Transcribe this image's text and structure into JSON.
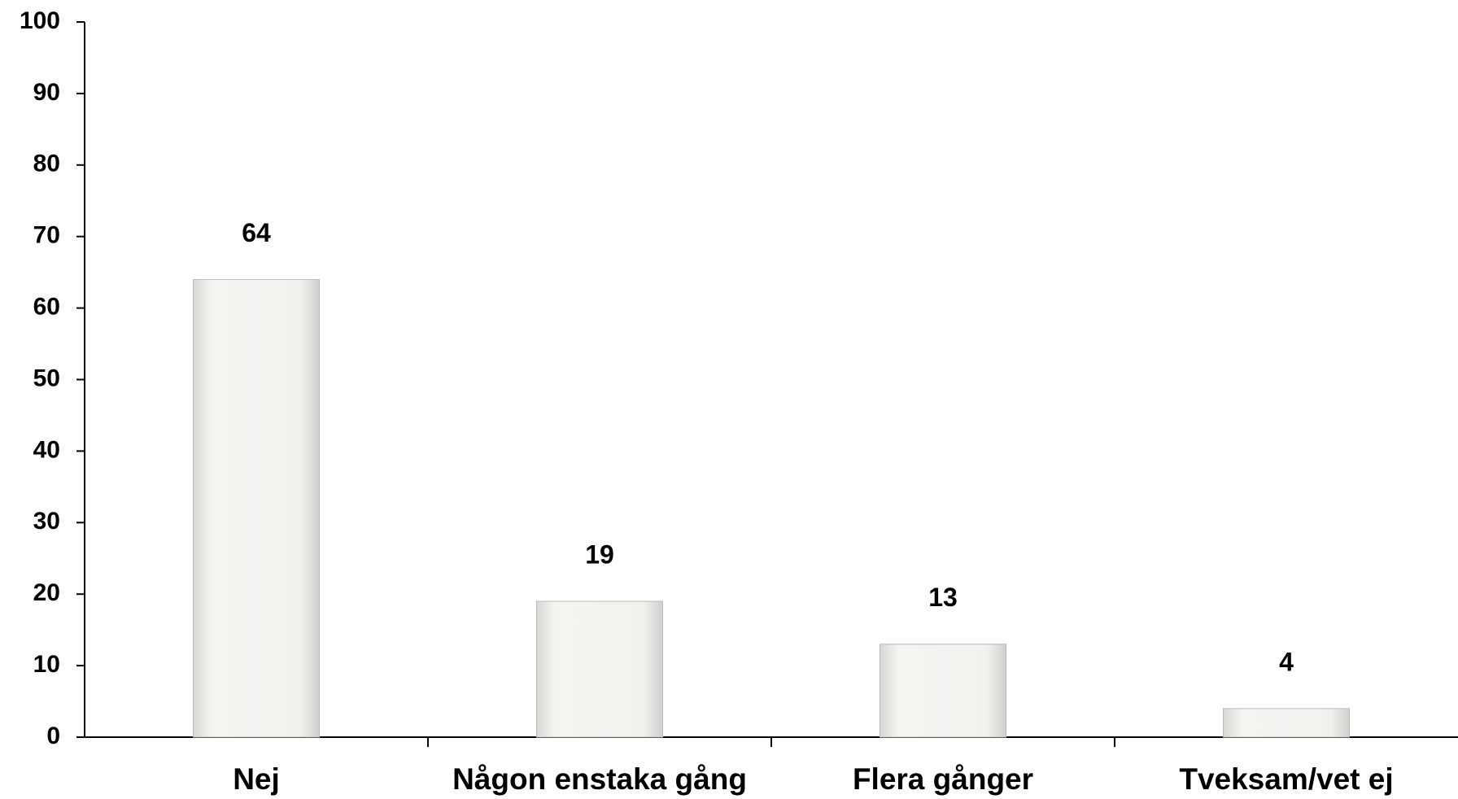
{
  "chart_data": {
    "type": "bar",
    "categories": [
      "Nej",
      "Någon enstaka gång",
      "Flera gånger",
      "Tveksam/vet ej"
    ],
    "values": [
      64,
      19,
      13,
      4
    ],
    "color": "#e9e9e6",
    "ylim": [
      0,
      100
    ],
    "yticks": [
      0,
      10,
      20,
      30,
      40,
      50,
      60,
      70,
      80,
      90,
      100
    ]
  }
}
